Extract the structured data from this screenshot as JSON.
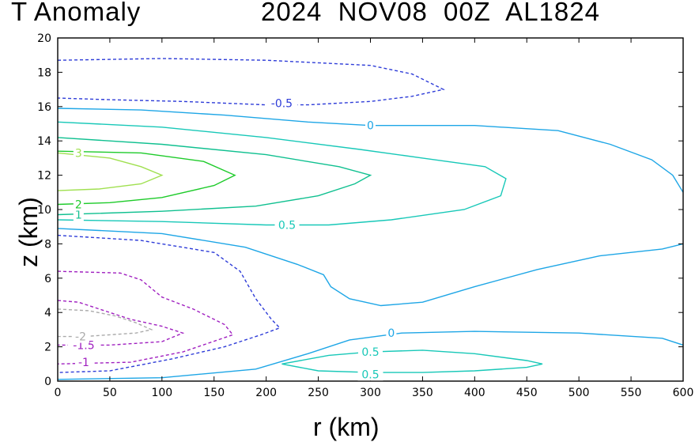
{
  "title_left": "T Anomaly",
  "title_right": "2024 NOV08 00Z   AL1824",
  "chart_data": {
    "type": "contour",
    "title": "T Anomaly   2024 NOV08 00Z   AL1824",
    "xlabel": "r (km)",
    "ylabel": "z (km)",
    "xlim": [
      0,
      600
    ],
    "ylim": [
      0,
      20
    ],
    "xticks": [
      0,
      50,
      100,
      150,
      200,
      250,
      300,
      350,
      400,
      450,
      500,
      550,
      600
    ],
    "yticks": [
      0,
      2,
      4,
      6,
      8,
      10,
      12,
      14,
      16,
      18,
      20
    ],
    "contours": [
      {
        "level": -0.5,
        "color": "#2e3cd8",
        "dashed": true,
        "label": "-0.5",
        "label_at": [
          215,
          16.2
        ],
        "points": [
          [
            0,
            18.7
          ],
          [
            100,
            18.8
          ],
          [
            200,
            18.7
          ],
          [
            300,
            18.4
          ],
          [
            340,
            17.9
          ],
          [
            370,
            17.0
          ],
          [
            340,
            16.6
          ],
          [
            300,
            16.3
          ],
          [
            240,
            16.1
          ],
          [
            200,
            16.1
          ],
          [
            120,
            16.3
          ],
          [
            50,
            16.4
          ],
          [
            0,
            16.5
          ]
        ]
      },
      {
        "level": 0,
        "color": "#1ea6e6",
        "dashed": false,
        "label": "0",
        "label_at": [
          300,
          14.9
        ],
        "points": [
          [
            0,
            15.9
          ],
          [
            80,
            15.8
          ],
          [
            160,
            15.5
          ],
          [
            240,
            15.1
          ],
          [
            300,
            14.9
          ],
          [
            400,
            14.9
          ],
          [
            480,
            14.6
          ],
          [
            530,
            13.8
          ],
          [
            570,
            12.9
          ],
          [
            590,
            12.0
          ],
          [
            600,
            11.0
          ]
        ]
      },
      {
        "level": 0.5,
        "color": "#18c8b8",
        "dashed": false,
        "label": "0.5",
        "label_at": [
          220,
          9.1
        ],
        "points": [
          [
            0,
            15.1
          ],
          [
            100,
            14.8
          ],
          [
            200,
            14.2
          ],
          [
            290,
            13.5
          ],
          [
            350,
            13.0
          ],
          [
            410,
            12.5
          ],
          [
            430,
            11.8
          ],
          [
            425,
            10.8
          ],
          [
            390,
            10.0
          ],
          [
            320,
            9.4
          ],
          [
            260,
            9.1
          ],
          [
            200,
            9.1
          ],
          [
            100,
            9.3
          ],
          [
            0,
            9.4
          ]
        ]
      },
      {
        "level": 1,
        "color": "#10c090",
        "dashed": false,
        "label": "1",
        "label_at": [
          20,
          9.7
        ],
        "points": [
          [
            0,
            14.2
          ],
          [
            100,
            13.8
          ],
          [
            200,
            13.2
          ],
          [
            270,
            12.5
          ],
          [
            300,
            12.0
          ],
          [
            285,
            11.5
          ],
          [
            250,
            10.8
          ],
          [
            190,
            10.2
          ],
          [
            100,
            9.9
          ],
          [
            0,
            9.7
          ]
        ]
      },
      {
        "level": 2,
        "color": "#1ecb2a",
        "dashed": false,
        "label": "2",
        "label_at": [
          20,
          10.3
        ],
        "points": [
          [
            0,
            13.4
          ],
          [
            80,
            13.3
          ],
          [
            140,
            12.8
          ],
          [
            170,
            12.0
          ],
          [
            150,
            11.4
          ],
          [
            100,
            10.7
          ],
          [
            50,
            10.4
          ],
          [
            0,
            10.3
          ]
        ]
      },
      {
        "level": 3,
        "color": "#a0e050",
        "dashed": false,
        "label": "3",
        "label_at": [
          20,
          13.3
        ],
        "points": [
          [
            0,
            13.3
          ],
          [
            50,
            13.0
          ],
          [
            80,
            12.5
          ],
          [
            100,
            12.0
          ],
          [
            80,
            11.5
          ],
          [
            40,
            11.2
          ],
          [
            0,
            11.1
          ]
        ]
      },
      {
        "level": 0,
        "color": "#1ea6e6",
        "dashed": false,
        "label": "",
        "label_at": [
          0,
          0
        ],
        "points": [
          [
            0,
            8.9
          ],
          [
            100,
            8.6
          ],
          [
            180,
            7.8
          ],
          [
            230,
            6.8
          ],
          [
            255,
            6.2
          ],
          [
            262,
            5.5
          ],
          [
            280,
            4.8
          ],
          [
            310,
            4.4
          ],
          [
            350,
            4.6
          ],
          [
            400,
            5.5
          ],
          [
            460,
            6.5
          ],
          [
            520,
            7.3
          ],
          [
            580,
            7.7
          ],
          [
            600,
            8.0
          ]
        ]
      },
      {
        "level": -0.5,
        "color": "#2e3cd8",
        "dashed": true,
        "label": "",
        "label_at": [
          0,
          0
        ],
        "points": [
          [
            0,
            8.5
          ],
          [
            80,
            8.2
          ],
          [
            150,
            7.5
          ],
          [
            175,
            6.4
          ],
          [
            190,
            4.8
          ],
          [
            205,
            3.6
          ],
          [
            213,
            3.1
          ],
          [
            195,
            2.7
          ],
          [
            160,
            2.0
          ],
          [
            110,
            1.3
          ],
          [
            50,
            0.6
          ],
          [
            0,
            0.5
          ]
        ]
      },
      {
        "level": -1,
        "color": "#a020c0",
        "dashed": true,
        "label": "-1",
        "label_at": [
          25,
          1.1
        ],
        "points": [
          [
            0,
            6.4
          ],
          [
            60,
            6.3
          ],
          [
            80,
            5.9
          ],
          [
            100,
            4.9
          ],
          [
            130,
            4.2
          ],
          [
            160,
            3.3
          ],
          [
            168,
            2.7
          ],
          [
            120,
            1.7
          ],
          [
            70,
            1.1
          ],
          [
            0,
            1.0
          ]
        ]
      },
      {
        "level": -1.5,
        "color": "#a020c0",
        "dashed": true,
        "label": "-1.5",
        "label_at": [
          25,
          2.1
        ],
        "points": [
          [
            0,
            4.7
          ],
          [
            20,
            4.6
          ],
          [
            50,
            4.0
          ],
          [
            70,
            3.6
          ],
          [
            100,
            3.2
          ],
          [
            120,
            2.8
          ],
          [
            100,
            2.3
          ],
          [
            50,
            2.1
          ],
          [
            0,
            2.1
          ]
        ]
      },
      {
        "level": -2,
        "color": "#aaaaaa",
        "dashed": true,
        "label": "-2",
        "label_at": [
          22,
          2.6
        ],
        "points": [
          [
            0,
            4.2
          ],
          [
            30,
            4.1
          ],
          [
            55,
            3.8
          ],
          [
            75,
            3.4
          ],
          [
            90,
            3.0
          ],
          [
            75,
            2.8
          ],
          [
            50,
            2.7
          ],
          [
            25,
            2.6
          ],
          [
            0,
            2.6
          ]
        ]
      },
      {
        "level": 0,
        "color": "#1ea6e6",
        "dashed": false,
        "label": "0",
        "label_at": [
          320,
          2.8
        ],
        "points": [
          [
            0,
            0.1
          ],
          [
            100,
            0.2
          ],
          [
            190,
            0.7
          ],
          [
            240,
            1.6
          ],
          [
            280,
            2.4
          ],
          [
            330,
            2.8
          ],
          [
            400,
            2.9
          ],
          [
            500,
            2.8
          ],
          [
            580,
            2.5
          ],
          [
            600,
            2.1
          ]
        ]
      },
      {
        "level": 0.5,
        "color": "#18c8b8",
        "dashed": false,
        "label": "0.5",
        "label_at": [
          300,
          1.7
        ],
        "points": [
          [
            215,
            1.0
          ],
          [
            260,
            1.5
          ],
          [
            300,
            1.7
          ],
          [
            350,
            1.8
          ],
          [
            400,
            1.6
          ],
          [
            450,
            1.2
          ],
          [
            465,
            1.0
          ],
          [
            450,
            0.8
          ],
          [
            400,
            0.6
          ],
          [
            350,
            0.5
          ],
          [
            300,
            0.5
          ],
          [
            250,
            0.6
          ],
          [
            215,
            1.0
          ]
        ]
      },
      {
        "level": 0.5,
        "color": "#18c8b8",
        "dashed": false,
        "label": "0.5",
        "label_at": [
          300,
          0.4
        ],
        "points": []
      }
    ]
  }
}
